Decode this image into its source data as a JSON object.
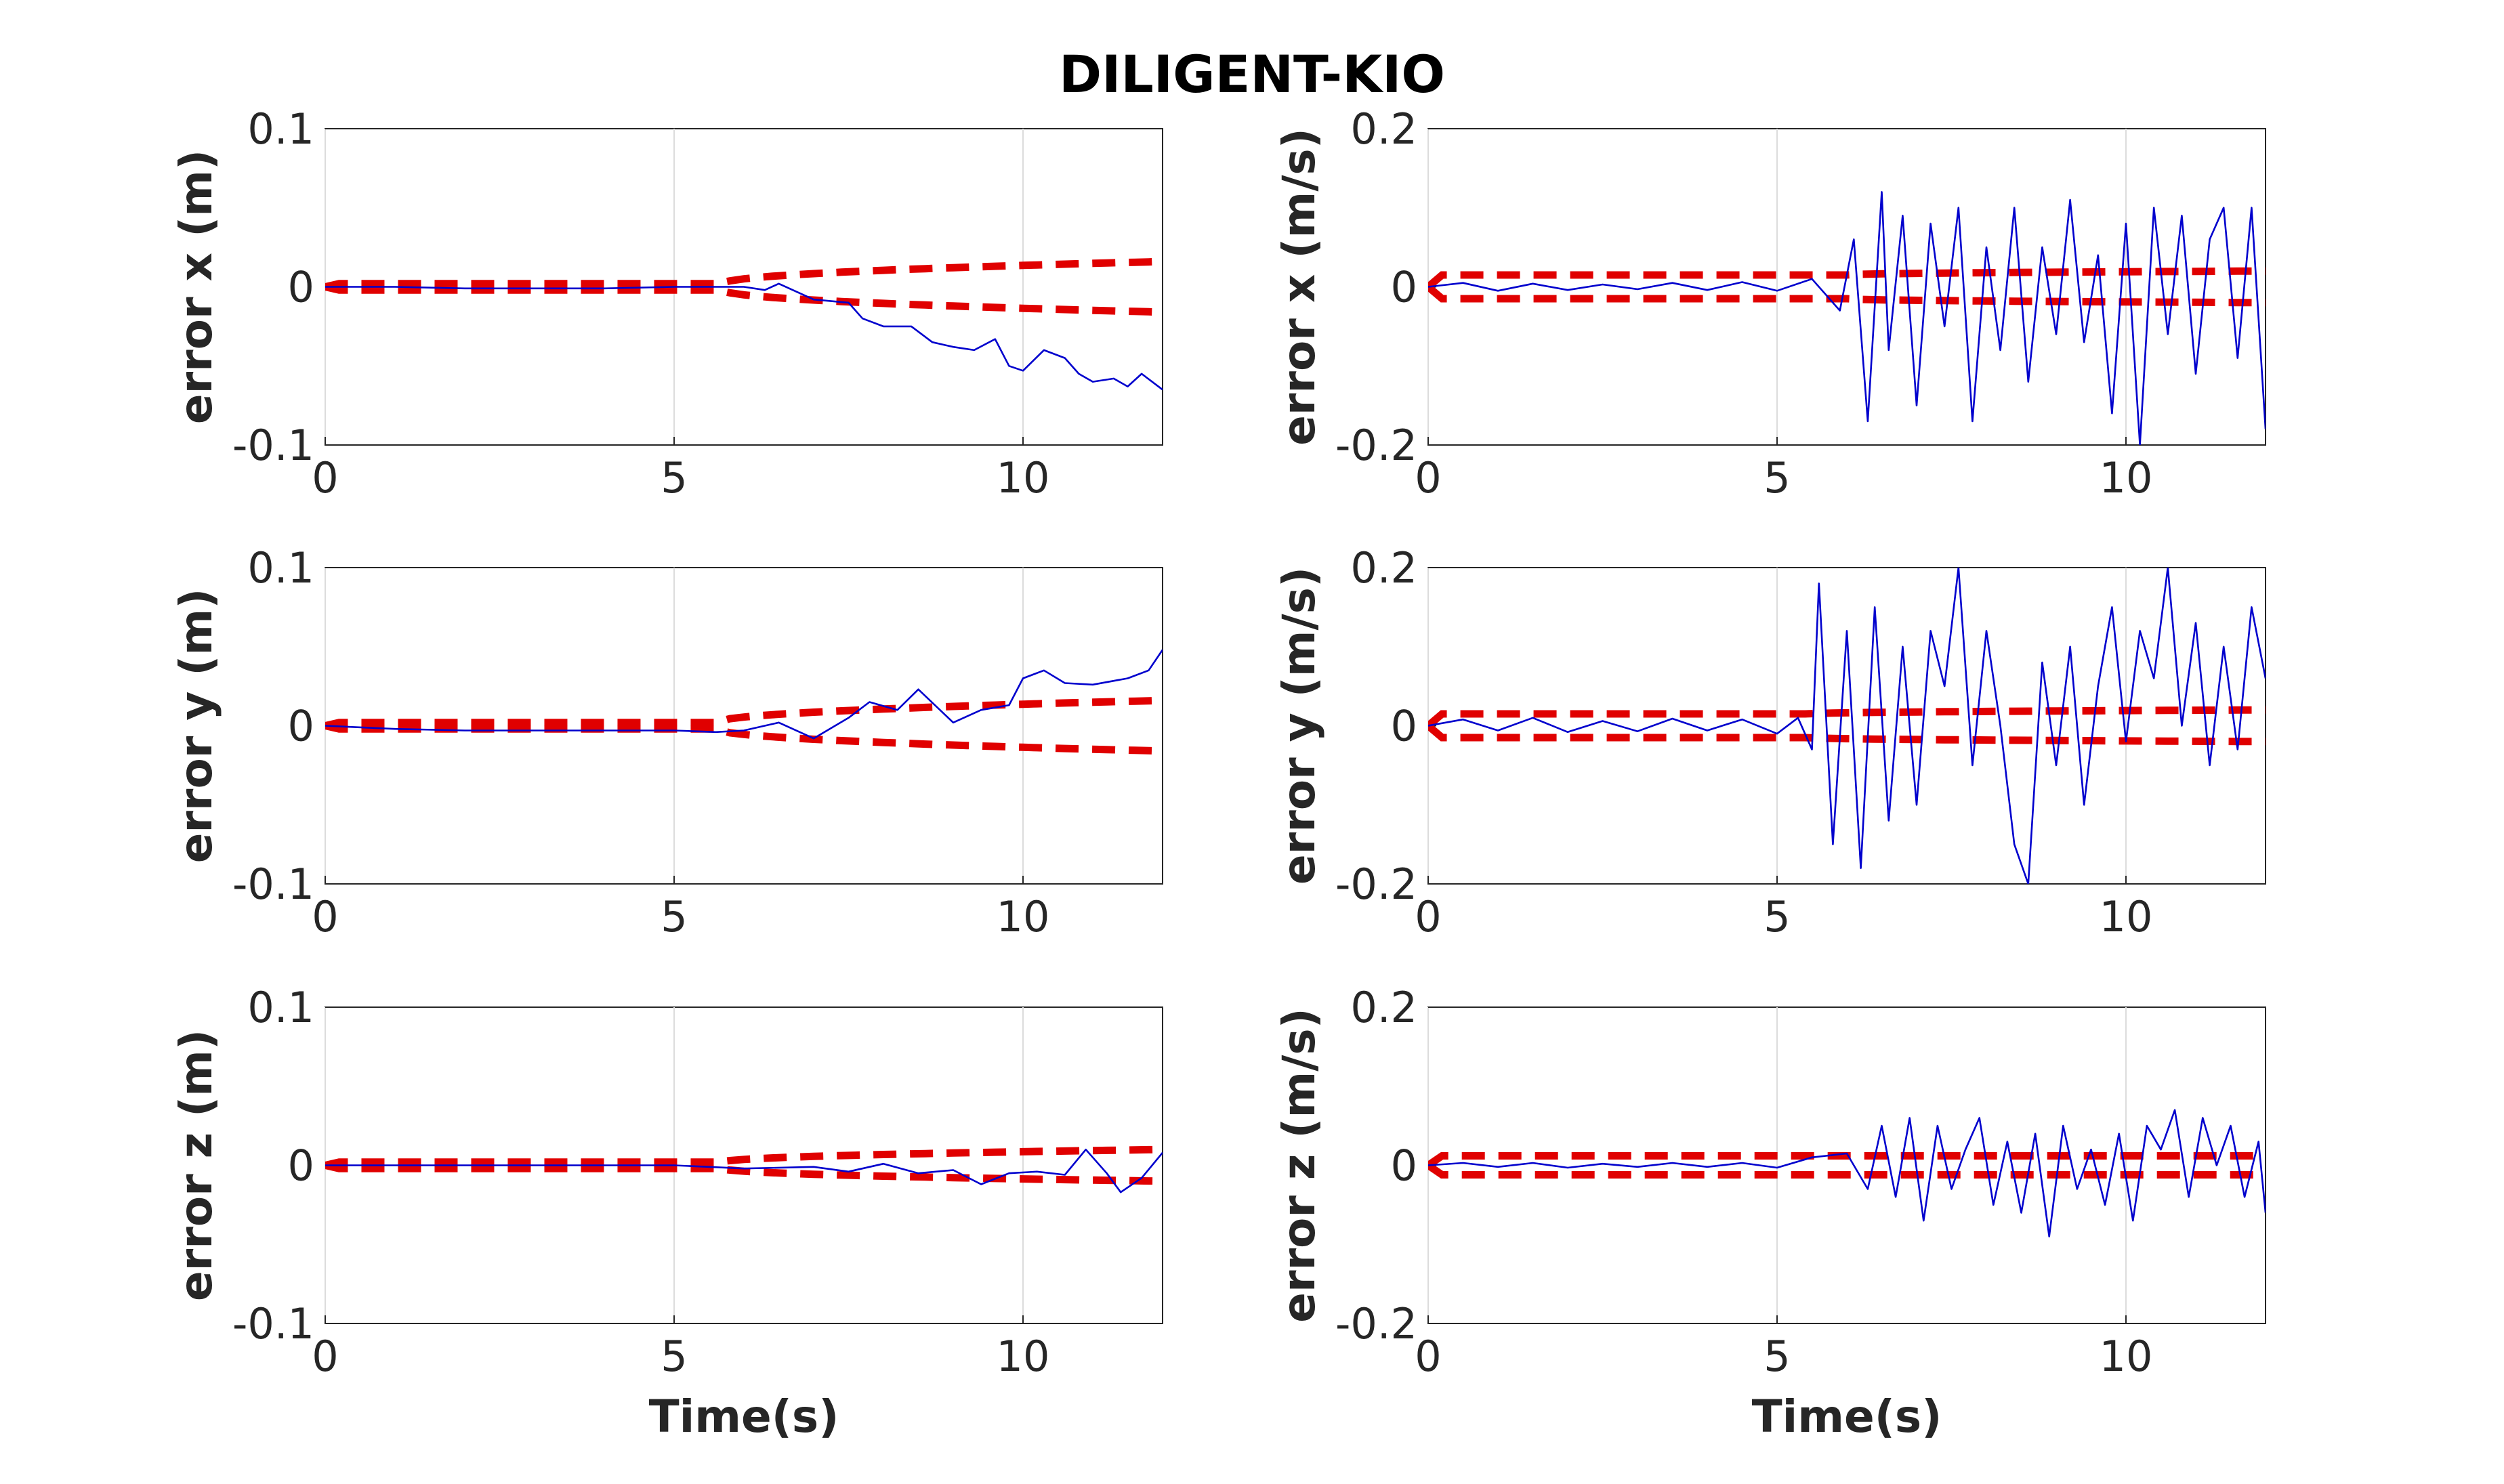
{
  "figure": {
    "title": "DILIGENT-KIO",
    "colors": {
      "error": "#0000cd",
      "bound": "#e00000",
      "axis": "#262626",
      "grid": "#dcdcdc"
    }
  },
  "chart_data": [
    {
      "type": "line",
      "ylabel": "error x (m)",
      "xlabel": "",
      "xlim": [
        0,
        12
      ],
      "ylim": [
        -0.1,
        0.1
      ],
      "xticks": [
        "0",
        "5",
        "10"
      ],
      "yticks": [
        "-0.1",
        "0",
        "0.1"
      ],
      "grid": "x",
      "bound_start": [
        0,
        0.002
      ],
      "bound_switch": 5.7,
      "bound_end": 0.016,
      "series": [
        {
          "role": "error",
          "x": [
            0,
            1,
            2,
            3,
            4,
            5,
            6,
            6.3,
            6.5,
            7,
            7.5,
            7.7,
            8,
            8.4,
            8.7,
            9,
            9.3,
            9.6,
            9.8,
            10,
            10.3,
            10.6,
            10.8,
            11,
            11.3,
            11.5,
            11.7,
            12
          ],
          "y": [
            0,
            0,
            -0.001,
            -0.001,
            -0.001,
            0,
            0,
            -0.002,
            0.002,
            -0.008,
            -0.01,
            -0.02,
            -0.025,
            -0.025,
            -0.035,
            -0.038,
            -0.04,
            -0.033,
            -0.05,
            -0.053,
            -0.04,
            -0.045,
            -0.055,
            -0.06,
            -0.058,
            -0.063,
            -0.055,
            -0.065
          ]
        }
      ]
    },
    {
      "type": "line",
      "ylabel": "error x (m/s)",
      "xlabel": "",
      "xlim": [
        0,
        12
      ],
      "ylim": [
        -0.2,
        0.2
      ],
      "xticks": [
        "0",
        "5",
        "10"
      ],
      "yticks": [
        "-0.2",
        "0",
        "0.2"
      ],
      "grid": "x",
      "bound_start": [
        0,
        0.015
      ],
      "bound_switch": 6.0,
      "bound_end": 0.02,
      "series": [
        {
          "role": "error",
          "x": [
            0,
            0.5,
            1,
            1.5,
            2,
            2.5,
            3,
            3.5,
            4,
            4.5,
            5,
            5.5,
            5.9,
            6.1,
            6.3,
            6.5,
            6.6,
            6.8,
            7,
            7.2,
            7.4,
            7.6,
            7.8,
            8,
            8.2,
            8.4,
            8.6,
            8.8,
            9,
            9.2,
            9.4,
            9.6,
            9.8,
            10,
            10.2,
            10.4,
            10.6,
            10.8,
            11,
            11.2,
            11.4,
            11.6,
            11.8,
            12
          ],
          "y": [
            0,
            0.005,
            -0.005,
            0.004,
            -0.004,
            0.003,
            -0.003,
            0.005,
            -0.004,
            0.006,
            -0.005,
            0.01,
            -0.03,
            0.06,
            -0.17,
            0.12,
            -0.08,
            0.09,
            -0.15,
            0.08,
            -0.05,
            0.1,
            -0.17,
            0.05,
            -0.08,
            0.1,
            -0.12,
            0.05,
            -0.06,
            0.11,
            -0.07,
            0.04,
            -0.16,
            0.08,
            -0.2,
            0.1,
            -0.06,
            0.09,
            -0.11,
            0.06,
            0.1,
            -0.09,
            0.1,
            -0.18
          ]
        }
      ]
    },
    {
      "type": "line",
      "ylabel": "error y (m)",
      "xlabel": "",
      "xlim": [
        0,
        12
      ],
      "ylim": [
        -0.1,
        0.1
      ],
      "xticks": [
        "0",
        "5",
        "10"
      ],
      "yticks": [
        "-0.1",
        "0",
        "0.1"
      ],
      "grid": "x",
      "bound_start": [
        0,
        0.002
      ],
      "bound_switch": 5.6,
      "bound_end": 0.016,
      "series": [
        {
          "role": "error",
          "x": [
            0,
            1,
            2,
            3,
            4,
            5,
            5.6,
            6,
            6.5,
            7,
            7.5,
            7.8,
            8.2,
            8.5,
            9,
            9.4,
            9.8,
            10,
            10.3,
            10.6,
            11,
            11.5,
            11.8,
            12
          ],
          "y": [
            0,
            -0.002,
            -0.003,
            -0.003,
            -0.003,
            -0.003,
            -0.004,
            -0.003,
            0.002,
            -0.008,
            0.005,
            0.015,
            0.01,
            0.023,
            0.002,
            0.01,
            0.013,
            0.03,
            0.035,
            0.027,
            0.026,
            0.03,
            0.035,
            0.048
          ]
        }
      ]
    },
    {
      "type": "line",
      "ylabel": "error y (m/s)",
      "xlabel": "",
      "xlim": [
        0,
        12
      ],
      "ylim": [
        -0.2,
        0.2
      ],
      "xticks": [
        "0",
        "5",
        "10"
      ],
      "yticks": [
        "-0.2",
        "0",
        "0.2"
      ],
      "grid": "x",
      "bound_start": [
        0,
        0.015
      ],
      "bound_switch": 5.5,
      "bound_end": 0.02,
      "series": [
        {
          "role": "error",
          "x": [
            0,
            0.5,
            1,
            1.5,
            2,
            2.5,
            3,
            3.5,
            4,
            4.5,
            5,
            5.3,
            5.5,
            5.6,
            5.8,
            6,
            6.2,
            6.4,
            6.6,
            6.8,
            7,
            7.2,
            7.4,
            7.6,
            7.8,
            8,
            8.2,
            8.4,
            8.6,
            8.8,
            9,
            9.2,
            9.4,
            9.6,
            9.8,
            10,
            10.2,
            10.4,
            10.6,
            10.8,
            11,
            11.2,
            11.4,
            11.6,
            11.8,
            12
          ],
          "y": [
            0,
            0.008,
            -0.006,
            0.01,
            -0.008,
            0.006,
            -0.007,
            0.009,
            -0.006,
            0.008,
            -0.01,
            0.01,
            -0.03,
            0.18,
            -0.15,
            0.12,
            -0.18,
            0.15,
            -0.12,
            0.1,
            -0.1,
            0.12,
            0.05,
            0.2,
            -0.05,
            0.12,
            0.0,
            -0.15,
            -0.2,
            0.08,
            -0.05,
            0.1,
            -0.1,
            0.05,
            0.15,
            -0.02,
            0.12,
            0.06,
            0.2,
            0.0,
            0.13,
            -0.05,
            0.1,
            -0.03,
            0.15,
            0.06
          ]
        }
      ]
    },
    {
      "type": "line",
      "ylabel": "error z (m)",
      "xlabel": "Time(s)",
      "xlim": [
        0,
        12
      ],
      "ylim": [
        -0.1,
        0.1
      ],
      "xticks": [
        "0",
        "5",
        "10"
      ],
      "yticks": [
        "-0.1",
        "0",
        "0.1"
      ],
      "grid": "x",
      "bound_start": [
        0,
        0.002
      ],
      "bound_switch": 5.7,
      "bound_end": 0.01,
      "series": [
        {
          "role": "error",
          "x": [
            0,
            1,
            2,
            3,
            4,
            5,
            6,
            7,
            7.5,
            8,
            8.5,
            9,
            9.4,
            9.8,
            10.2,
            10.6,
            10.9,
            11.2,
            11.4,
            11.7,
            12
          ],
          "y": [
            0,
            0,
            0,
            0,
            0,
            0,
            -0.002,
            -0.001,
            -0.004,
            0.001,
            -0.005,
            -0.003,
            -0.012,
            -0.005,
            -0.004,
            -0.006,
            0.01,
            -0.005,
            -0.017,
            -0.008,
            0.008
          ]
        }
      ]
    },
    {
      "type": "line",
      "ylabel": "error z (m/s)",
      "xlabel": "Time(s)",
      "xlim": [
        0,
        12
      ],
      "ylim": [
        -0.2,
        0.2
      ],
      "xticks": [
        "0",
        "5",
        "10"
      ],
      "yticks": [
        "-0.2",
        "0",
        "0.2"
      ],
      "grid": "x",
      "bound_start": [
        0,
        0.012
      ],
      "bound_switch": 5.5,
      "bound_end": 0.012,
      "series": [
        {
          "role": "error",
          "x": [
            0,
            0.5,
            1,
            1.5,
            2,
            2.5,
            3,
            3.5,
            4,
            4.5,
            5,
            5.5,
            6,
            6.3,
            6.5,
            6.7,
            6.9,
            7.1,
            7.3,
            7.5,
            7.7,
            7.9,
            8.1,
            8.3,
            8.5,
            8.7,
            8.9,
            9.1,
            9.3,
            9.5,
            9.7,
            9.9,
            10.1,
            10.3,
            10.5,
            10.7,
            10.9,
            11.1,
            11.3,
            11.5,
            11.7,
            11.9,
            12
          ],
          "y": [
            0,
            0.003,
            -0.002,
            0.003,
            -0.003,
            0.002,
            -0.002,
            0.003,
            -0.002,
            0.003,
            -0.003,
            0.01,
            0.015,
            -0.03,
            0.05,
            -0.04,
            0.06,
            -0.07,
            0.05,
            -0.03,
            0.02,
            0.06,
            -0.05,
            0.03,
            -0.06,
            0.04,
            -0.09,
            0.05,
            -0.03,
            0.02,
            -0.05,
            0.04,
            -0.07,
            0.05,
            0.02,
            0.07,
            -0.04,
            0.06,
            0.0,
            0.05,
            -0.04,
            0.03,
            -0.06
          ]
        }
      ]
    }
  ]
}
